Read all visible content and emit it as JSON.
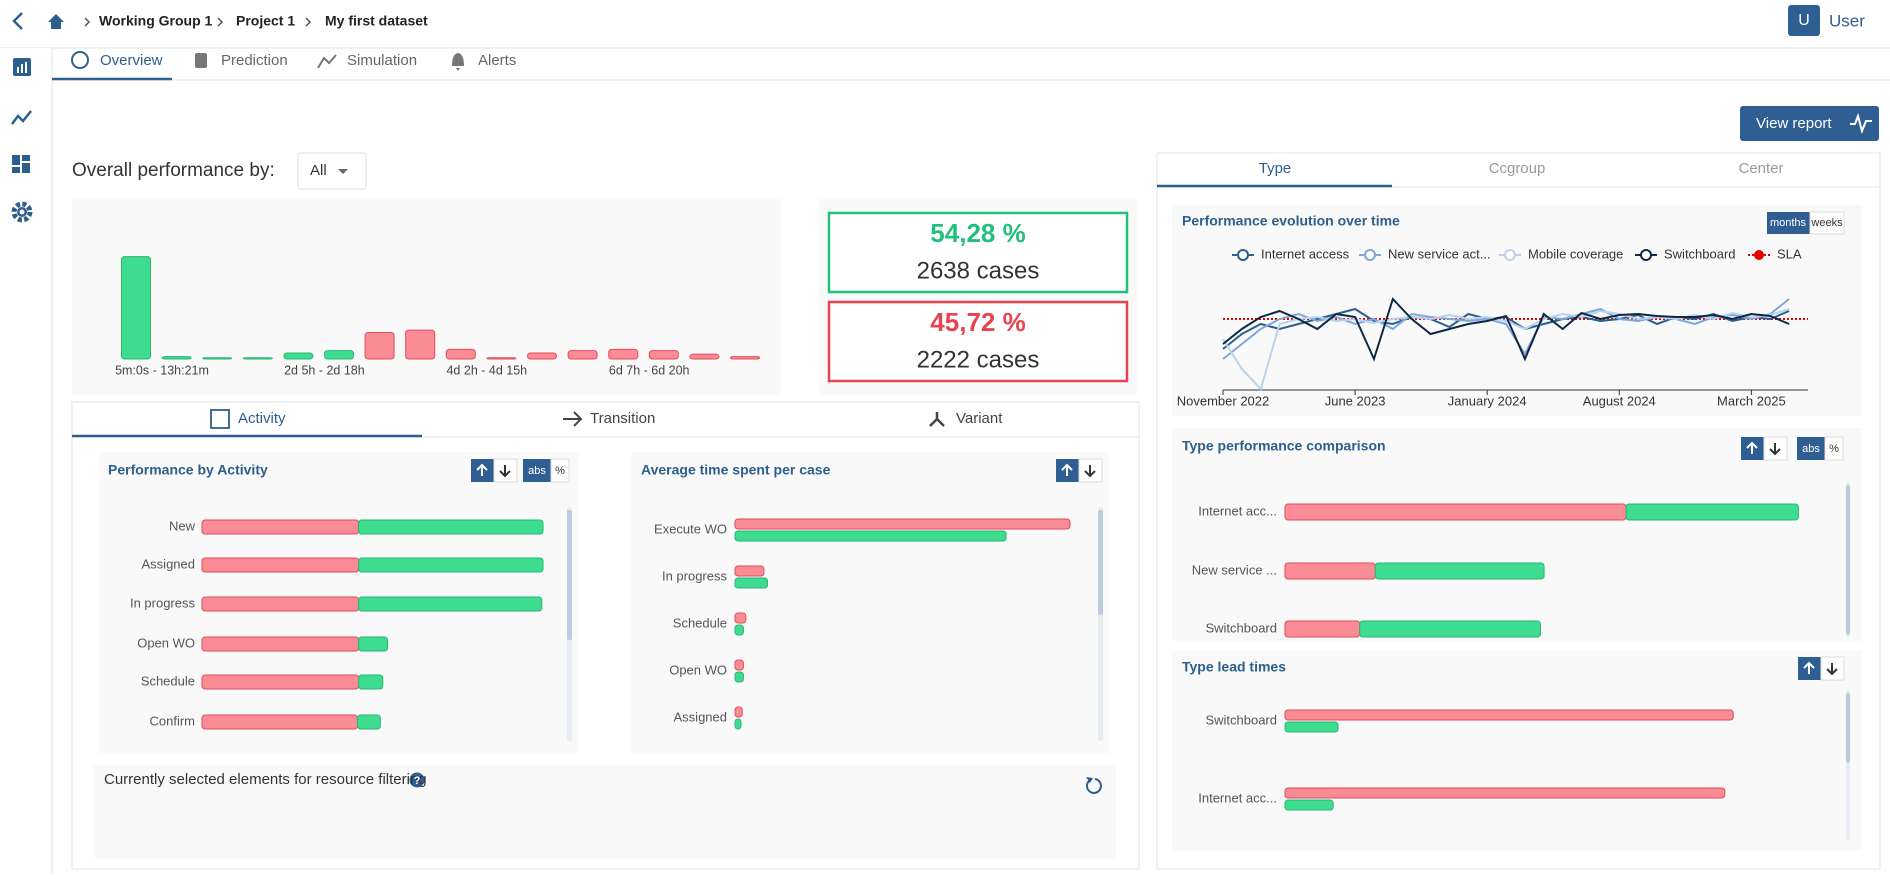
{
  "breadcrumb": [
    "Working Group 1",
    "Project 1",
    "My first dataset"
  ],
  "user": {
    "initial": "U",
    "name": "User"
  },
  "tabs": [
    "Overview",
    "Prediction",
    "Simulation",
    "Alerts"
  ],
  "view_report": "View report",
  "performance": {
    "label": "Overall performance by:",
    "select": "All",
    "histogram": {
      "type": "bar",
      "categories": [
        "5m:0s - 13h:21m",
        null,
        null,
        null,
        "2d 5h - 2d 18h",
        null,
        null,
        null,
        "4d 2h - 4d 15h",
        null,
        null,
        null,
        "6d 7h - 6d 20h",
        null,
        null,
        null
      ],
      "values": [
        85,
        2,
        1,
        1,
        5,
        7,
        22,
        24,
        8,
        1,
        5,
        7,
        8,
        7,
        4,
        2
      ],
      "colors": [
        "#3ddc91",
        "#3ddc91",
        "#3ddc91",
        "#3ddc91",
        "#3ddc91",
        "#3ddc91",
        "#fb8b94",
        "#fb8b94",
        "#fb8b94",
        "#fb8b94",
        "#fb8b94",
        "#fb8b94",
        "#fb8b94",
        "#fb8b94",
        "#fb8b94",
        "#fb8b94"
      ]
    }
  },
  "kpis": [
    {
      "percent": "54,28 %",
      "cases": "2638 cases",
      "color": "#22c07a"
    },
    {
      "percent": "45,72 %",
      "cases": "2222 cases",
      "color": "#e8434f"
    }
  ],
  "detail_tabs": [
    "Activity",
    "Transition",
    "Variant"
  ],
  "activity_chart": {
    "type": "bar",
    "stacked": true,
    "title": "Performance by Activity",
    "toggle": [
      "abs",
      "%"
    ],
    "categories": [
      "New",
      "Assigned",
      "In progress",
      "Open WO",
      "Schedule",
      "Confirm"
    ],
    "series": [
      {
        "color": "#fb8b94",
        "values": [
          130,
          130,
          130,
          130,
          130,
          129
        ]
      },
      {
        "color": "#3ddc91",
        "values": [
          153,
          153,
          152,
          24,
          20,
          19
        ]
      }
    ]
  },
  "time_chart": {
    "type": "bar",
    "stacked": false,
    "title": "Average time spent per case",
    "categories": [
      "Execute WO",
      "In progress",
      "Schedule",
      "Open WO",
      "Assigned"
    ],
    "series": [
      {
        "color": "#fb8b94",
        "values": [
          278,
          24,
          9,
          7,
          6
        ]
      },
      {
        "color": "#3ddc91",
        "values": [
          225,
          27,
          7,
          7,
          5
        ]
      }
    ]
  },
  "resource_filter": {
    "text": "Currently selected elements for resource filtering",
    "help": "?"
  },
  "right_tabs": [
    "Type",
    "Ccgroup",
    "Center"
  ],
  "evolution_chart": {
    "type": "line",
    "title": "Performance evolution over time",
    "toggle": [
      "months",
      "weeks"
    ],
    "xlim": [
      0,
      31
    ],
    "ylim": [
      0,
      100
    ],
    "xticks": [
      {
        "value": 0,
        "label": "November 2022"
      },
      {
        "value": 7,
        "label": "June 2023"
      },
      {
        "value": 14,
        "label": "January 2024"
      },
      {
        "value": 21,
        "label": "August 2024"
      },
      {
        "value": 28,
        "label": "March 2025"
      }
    ],
    "series": [
      {
        "name": "Internet access",
        "color": "#2d5f8e",
        "values": [
          40,
          55,
          65,
          60,
          65,
          70,
          75,
          80,
          68,
          65,
          72,
          70,
          62,
          75,
          70,
          72,
          60,
          65,
          70,
          72,
          68,
          70,
          74,
          65,
          72,
          70,
          75,
          68,
          72,
          70,
          78
        ]
      },
      {
        "name": "New service act...",
        "color": "#7fa8d8",
        "values": [
          30,
          45,
          60,
          70,
          75,
          68,
          72,
          65,
          70,
          60,
          75,
          72,
          70,
          68,
          70,
          65,
          35,
          72,
          70,
          75,
          80,
          70,
          68,
          72,
          70,
          65,
          72,
          74,
          70,
          75,
          90
        ]
      },
      {
        "name": "Mobile coverage",
        "color": "#b9d3ee",
        "values": [
          50,
          20,
          0,
          65,
          70,
          72,
          68,
          70,
          66,
          70,
          72,
          70,
          74,
          70,
          72,
          68,
          60,
          70,
          75,
          72,
          78,
          75,
          70,
          72,
          70,
          74,
          70,
          76,
          72,
          74,
          80
        ]
      },
      {
        "name": "Switchboard",
        "color": "#0f2742",
        "values": [
          45,
          60,
          72,
          78,
          70,
          60,
          75,
          72,
          30,
          90,
          70,
          55,
          60,
          65,
          68,
          73,
          30,
          75,
          60,
          76,
          70,
          74,
          75,
          73,
          72,
          72,
          74,
          70,
          75,
          73,
          65
        ]
      }
    ],
    "sla": {
      "name": "SLA",
      "color": "#e00000",
      "value": 70
    }
  },
  "comparison_chart": {
    "type": "bar",
    "stacked": true,
    "title": "Type performance comparison",
    "toggle": [
      "abs",
      "%"
    ],
    "categories": [
      "Internet acc...",
      "New service ...",
      "Switchboard"
    ],
    "series": [
      {
        "color": "#fb8b94",
        "values": [
          283,
          75,
          62
        ]
      },
      {
        "color": "#3ddc91",
        "values": [
          143,
          140,
          150
        ]
      }
    ]
  },
  "lead_chart": {
    "type": "bar",
    "stacked": false,
    "title": "Type lead times",
    "categories": [
      "Switchboard",
      "Internet acc..."
    ],
    "series": [
      {
        "color": "#fb8b94",
        "values": [
          372,
          365
        ]
      },
      {
        "color": "#3ddc91",
        "values": [
          44,
          40
        ]
      }
    ]
  }
}
